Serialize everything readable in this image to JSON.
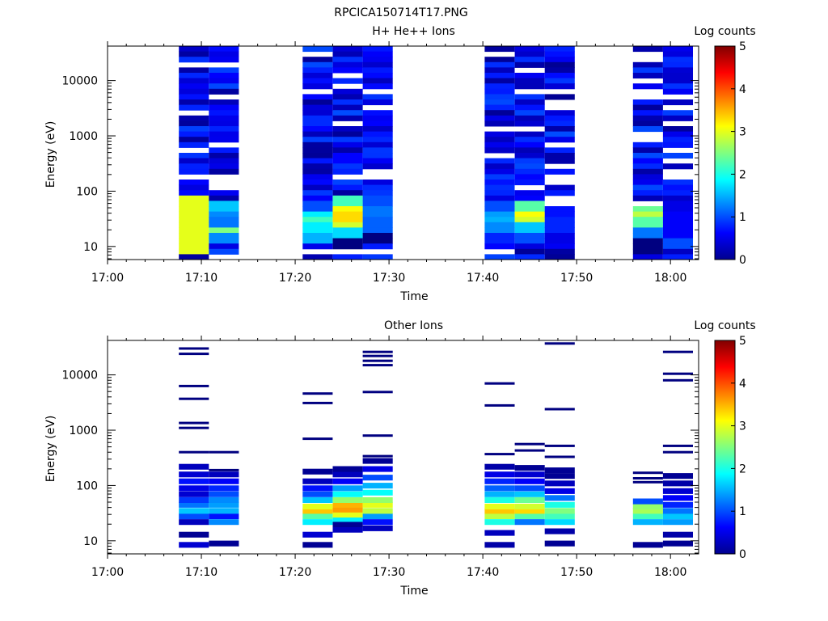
{
  "figure": {
    "title": "RPCICA150714T17.PNG"
  },
  "chart_data": [
    {
      "type": "heatmap",
      "title": "H+ He++ Ions",
      "xlabel": "Time",
      "ylabel": "Energy (eV)",
      "xlim": [
        "17:00",
        "18:03"
      ],
      "ylim": [
        5.8,
        42000
      ],
      "yscale": "log",
      "x_ticks": [
        "17:00",
        "17:10",
        "17:20",
        "17:30",
        "17:40",
        "17:50",
        "18:00"
      ],
      "y_ticks": [
        "10",
        "100",
        "1000",
        "10000"
      ],
      "colorbar": {
        "label": "Log counts",
        "min": 0,
        "max": 5,
        "ticks": [
          "0",
          "1",
          "2",
          "3",
          "4",
          "5"
        ]
      },
      "columns": [
        {
          "start": "17:07.6",
          "end": "17:10.8",
          "low": [
            [
              9,
              3
            ],
            [
              13,
              3
            ],
            [
              18,
              3
            ],
            [
              25,
              3
            ],
            [
              35,
              3
            ],
            [
              50,
              3
            ],
            [
              70,
              3
            ]
          ]
        },
        {
          "start": "17:10.8",
          "end": "17:14.0",
          "low": [
            [
              15,
              1.3
            ],
            [
              20,
              2.5
            ],
            [
              28,
              1.2
            ],
            [
              40,
              1.3
            ],
            [
              55,
              1.6
            ],
            [
              70,
              0.2
            ]
          ]
        },
        {
          "start": "17:20.8",
          "end": "17:24.0",
          "low": [
            [
              15,
              1.5
            ],
            [
              22,
              1.8
            ],
            [
              30,
              2.2
            ],
            [
              40,
              1.8
            ],
            [
              55,
              1.0
            ]
          ]
        },
        {
          "start": "17:24.0",
          "end": "17:27.2",
          "low": [
            [
              13,
              0.0
            ],
            [
              18,
              1.7
            ],
            [
              25,
              2.9
            ],
            [
              35,
              3.3
            ],
            [
              50,
              3.1
            ],
            [
              65,
              2.2
            ]
          ]
        },
        {
          "start": "17:27.2",
          "end": "17:30.4",
          "low": [
            [
              15,
              0.0
            ],
            [
              25,
              1.1
            ],
            [
              40,
              1.2
            ],
            [
              60,
              1.0
            ]
          ]
        },
        {
          "start": "17:40.2",
          "end": "17:43.4",
          "low": [
            [
              15,
              0.8
            ],
            [
              22,
              1.3
            ],
            [
              30,
              1.5
            ],
            [
              40,
              1.4
            ],
            [
              55,
              1.0
            ]
          ]
        },
        {
          "start": "17:43.4",
          "end": "17:46.6",
          "low": [
            [
              15,
              1.0
            ],
            [
              22,
              1.6
            ],
            [
              30,
              2.9
            ],
            [
              40,
              3.1
            ],
            [
              55,
              2.3
            ]
          ]
        },
        {
          "start": "17:46.6",
          "end": "17:49.8",
          "low": [
            [
              15,
              0.5
            ],
            [
              22,
              0.8
            ],
            [
              30,
              0.8
            ],
            [
              40,
              0.7
            ]
          ]
        },
        {
          "start": "17:56.0",
          "end": "17:59.2",
          "low": [
            [
              10,
              0.0
            ],
            [
              20,
              1.2
            ],
            [
              28,
              2.3
            ],
            [
              35,
              2.8
            ],
            [
              45,
              2.4
            ]
          ]
        },
        {
          "start": "17:59.2",
          "end": "18:02.4",
          "low": [
            [
              12,
              1.0
            ],
            [
              20,
              0.6
            ],
            [
              30,
              0.6
            ],
            [
              40,
              0.6
            ],
            [
              55,
              0.5
            ]
          ]
        }
      ]
    },
    {
      "type": "heatmap",
      "title": "Other Ions",
      "xlabel": "Time",
      "ylabel": "Energy (eV)",
      "xlim": [
        "17:00",
        "18:03"
      ],
      "ylim": [
        5.8,
        42000
      ],
      "yscale": "log",
      "x_ticks": [
        "17:00",
        "17:10",
        "17:20",
        "17:30",
        "17:40",
        "17:50",
        "18:00"
      ],
      "y_ticks": [
        "10",
        "100",
        "1000",
        "10000"
      ],
      "colorbar": {
        "label": "Log counts",
        "min": 0,
        "max": 5,
        "ticks": [
          "0",
          "1",
          "2",
          "3",
          "4",
          "5"
        ]
      },
      "columns": [
        {
          "start": "17:07.6",
          "end": "17:10.8",
          "bands": [
            [
              8.5,
              0.4
            ],
            [
              13,
              0.1
            ],
            [
              22,
              0.3
            ],
            [
              28,
              1.0
            ],
            [
              35,
              1.6
            ],
            [
              45,
              1.2
            ],
            [
              55,
              0.9
            ],
            [
              70,
              0.4
            ],
            [
              90,
              0.5
            ],
            [
              120,
              0.7
            ],
            [
              160,
              0.4
            ],
            [
              220,
              0.3
            ]
          ],
          "lines": [
            400,
            1100,
            1350,
            3700,
            6300,
            24000,
            30000
          ]
        },
        {
          "start": "17:10.8",
          "end": "17:14.0",
          "bands": [
            [
              9,
              0.1
            ],
            [
              22,
              1.3
            ],
            [
              28,
              0.7
            ],
            [
              35,
              1.5
            ],
            [
              45,
              1.4
            ],
            [
              55,
              1.3
            ],
            [
              70,
              1.0
            ],
            [
              90,
              0.8
            ],
            [
              120,
              0.6
            ],
            [
              160,
              0.3
            ]
          ],
          "lines": [
            190,
            400
          ]
        },
        {
          "start": "17:20.8",
          "end": "17:24.0",
          "bands": [
            [
              8.5,
              0.1
            ],
            [
              13,
              0.4
            ],
            [
              22,
              1.8
            ],
            [
              28,
              2.3
            ],
            [
              35,
              3.4
            ],
            [
              42,
              3.0
            ],
            [
              55,
              1.6
            ],
            [
              70,
              1.0
            ],
            [
              90,
              0.7
            ],
            [
              120,
              0.3
            ],
            [
              180,
              0.1
            ]
          ],
          "lines": [
            700,
            3100,
            4600
          ]
        },
        {
          "start": "17:24.0",
          "end": "17:27.2",
          "bands": [
            [
              16,
              0.3
            ],
            [
              20,
              0.1
            ],
            [
              25,
              1.8
            ],
            [
              30,
              3.0
            ],
            [
              37,
              3.6
            ],
            [
              45,
              3.5
            ],
            [
              55,
              2.6
            ],
            [
              70,
              1.9
            ],
            [
              90,
              1.4
            ],
            [
              120,
              0.6
            ],
            [
              160,
              0.3
            ],
            [
              200,
              0.1
            ]
          ],
          "lines": []
        },
        {
          "start": "17:27.2",
          "end": "17:30.4",
          "bands": [
            [
              17,
              0.3
            ],
            [
              22,
              0.7
            ],
            [
              28,
              1.4
            ],
            [
              35,
              2.8
            ],
            [
              45,
              3.0
            ],
            [
              55,
              2.6
            ],
            [
              75,
              1.9
            ],
            [
              100,
              1.5
            ],
            [
              140,
              1.0
            ],
            [
              200,
              0.5
            ],
            [
              280,
              0.1
            ]
          ],
          "lines": [
            340,
            800,
            4900,
            15000,
            18000,
            22000,
            26000
          ]
        },
        {
          "start": "17:40.2",
          "end": "17:43.4",
          "bands": [
            [
              8.5,
              0.2
            ],
            [
              14,
              0.3
            ],
            [
              22,
              2.0
            ],
            [
              28,
              2.8
            ],
            [
              35,
              3.4
            ],
            [
              42,
              3.0
            ],
            [
              55,
              2.0
            ],
            [
              70,
              1.5
            ],
            [
              90,
              1.1
            ],
            [
              120,
              0.8
            ],
            [
              160,
              0.5
            ],
            [
              220,
              0.2
            ]
          ],
          "lines": [
            370,
            2800,
            7000
          ]
        },
        {
          "start": "17:43.4",
          "end": "17:46.6",
          "bands": [
            [
              22,
              1.2
            ],
            [
              28,
              2.3
            ],
            [
              35,
              3.3
            ],
            [
              42,
              2.9
            ],
            [
              55,
              2.4
            ],
            [
              70,
              1.6
            ],
            [
              90,
              1.0
            ],
            [
              120,
              0.6
            ],
            [
              160,
              0.4
            ],
            [
              210,
              0.1
            ]
          ],
          "lines": [
            430,
            560
          ]
        },
        {
          "start": "17:46.6",
          "end": "17:49.8",
          "bands": [
            [
              9,
              0.1
            ],
            [
              15,
              0.2
            ],
            [
              22,
              1.7
            ],
            [
              28,
              2.2
            ],
            [
              35,
              2.5
            ],
            [
              45,
              2.0
            ],
            [
              60,
              1.2
            ],
            [
              80,
              0.5
            ],
            [
              110,
              0.3
            ],
            [
              150,
              0.1
            ],
            [
              190,
              0.1
            ]
          ],
          "lines": [
            330,
            520,
            2400,
            37000
          ]
        },
        {
          "start": "17:56.0",
          "end": "17:59.2",
          "bands": [
            [
              8.5,
              0.1
            ],
            [
              22,
              1.5
            ],
            [
              28,
              2.2
            ],
            [
              35,
              2.7
            ],
            [
              42,
              2.6
            ],
            [
              52,
              1.0
            ]
          ],
          "lines": [
            115,
            135,
            170
          ]
        },
        {
          "start": "17:59.2",
          "end": "18:02.4",
          "bands": [
            [
              9,
              0.1
            ],
            [
              13,
              0.2
            ],
            [
              22,
              1.4
            ],
            [
              28,
              1.6
            ],
            [
              35,
              1.2
            ],
            [
              45,
              0.8
            ],
            [
              60,
              0.6
            ],
            [
              80,
              0.4
            ],
            [
              110,
              0.2
            ],
            [
              150,
              0.1
            ]
          ],
          "lines": [
            400,
            520,
            8000,
            10500,
            26000
          ]
        }
      ]
    }
  ]
}
